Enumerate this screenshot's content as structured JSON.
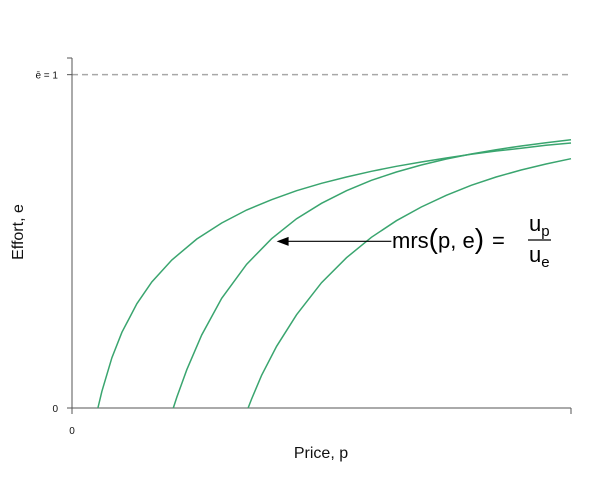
{
  "chart_data": {
    "type": "line",
    "title": "",
    "xlabel": "Price, p",
    "ylabel": "Effort, e",
    "x_tick_labels": [
      "0"
    ],
    "y_tick_labels": [
      "0"
    ],
    "xlim": [
      0,
      1
    ],
    "ylim": [
      0,
      1.05
    ],
    "grid": false,
    "reference_line": {
      "axis": "y",
      "value": 1,
      "label": "ē = 1",
      "style": "dashed"
    },
    "annotation": {
      "formula": {
        "lhs_prefix": "mrs",
        "open_paren": "(",
        "args": "p, e",
        "close_paren": ")",
        "equals": "=",
        "numerator_base": "u",
        "numerator_sub": "p",
        "denominator_base": "u",
        "denominator_sub": "e"
      },
      "arrow_from_x": 0.64,
      "arrow_to_x": 0.41,
      "arrow_y": 0.5
    },
    "series": [
      {
        "x": [
          0.052,
          0.06,
          0.08,
          0.1,
          0.13,
          0.16,
          0.2,
          0.25,
          0.3,
          0.35,
          0.4,
          0.45,
          0.5,
          0.55,
          0.6,
          0.65,
          0.7,
          0.75,
          0.8,
          0.85,
          0.9,
          0.95,
          1.0
        ],
        "y": [
          0.0,
          0.05,
          0.151,
          0.227,
          0.313,
          0.378,
          0.444,
          0.507,
          0.555,
          0.594,
          0.625,
          0.652,
          0.674,
          0.693,
          0.71,
          0.725,
          0.738,
          0.75,
          0.761,
          0.771,
          0.779,
          0.788,
          0.795
        ]
      },
      {
        "x": [
          0.203,
          0.21,
          0.23,
          0.26,
          0.3,
          0.35,
          0.4,
          0.45,
          0.5,
          0.55,
          0.6,
          0.65,
          0.7,
          0.75,
          0.8,
          0.85,
          0.9,
          0.95,
          1.0
        ],
        "y": [
          0.0,
          0.032,
          0.115,
          0.219,
          0.329,
          0.431,
          0.508,
          0.568,
          0.614,
          0.652,
          0.683,
          0.708,
          0.729,
          0.747,
          0.762,
          0.775,
          0.786,
          0.796,
          0.805
        ]
      },
      {
        "x": [
          0.353,
          0.36,
          0.38,
          0.41,
          0.45,
          0.5,
          0.55,
          0.6,
          0.65,
          0.7,
          0.75,
          0.8,
          0.85,
          0.9,
          0.95,
          1.0
        ],
        "y": [
          0.0,
          0.027,
          0.098,
          0.185,
          0.28,
          0.376,
          0.451,
          0.512,
          0.562,
          0.603,
          0.638,
          0.668,
          0.693,
          0.714,
          0.732,
          0.748
        ]
      }
    ]
  }
}
